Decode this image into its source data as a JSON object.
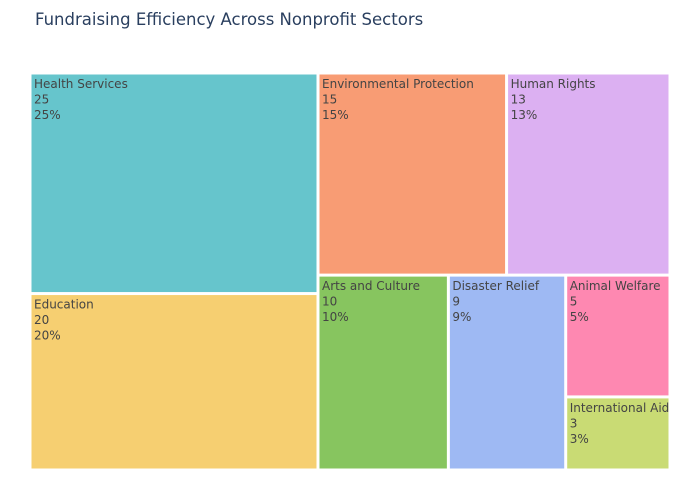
{
  "chart_data": {
    "type": "treemap",
    "title": "Fundraising Efficiency Across Nonprofit Sectors",
    "items": [
      {
        "label": "Health Services",
        "value": 25,
        "percent": "25%",
        "color": "#66c5cc"
      },
      {
        "label": "Education",
        "value": 20,
        "percent": "20%",
        "color": "#f6cf71"
      },
      {
        "label": "Environmental Protection",
        "value": 15,
        "percent": "15%",
        "color": "#f89c74"
      },
      {
        "label": "Human Rights",
        "value": 13,
        "percent": "13%",
        "color": "#dcb0f2"
      },
      {
        "label": "Arts and Culture",
        "value": 10,
        "percent": "10%",
        "color": "#87c55f"
      },
      {
        "label": "Disaster Relief",
        "value": 9,
        "percent": "9%",
        "color": "#9eb9f3"
      },
      {
        "label": "Animal Welfare",
        "value": 5,
        "percent": "5%",
        "color": "#fe88b1"
      },
      {
        "label": "International Aid",
        "value": 3,
        "percent": "3%",
        "color": "#c9db74"
      }
    ]
  }
}
